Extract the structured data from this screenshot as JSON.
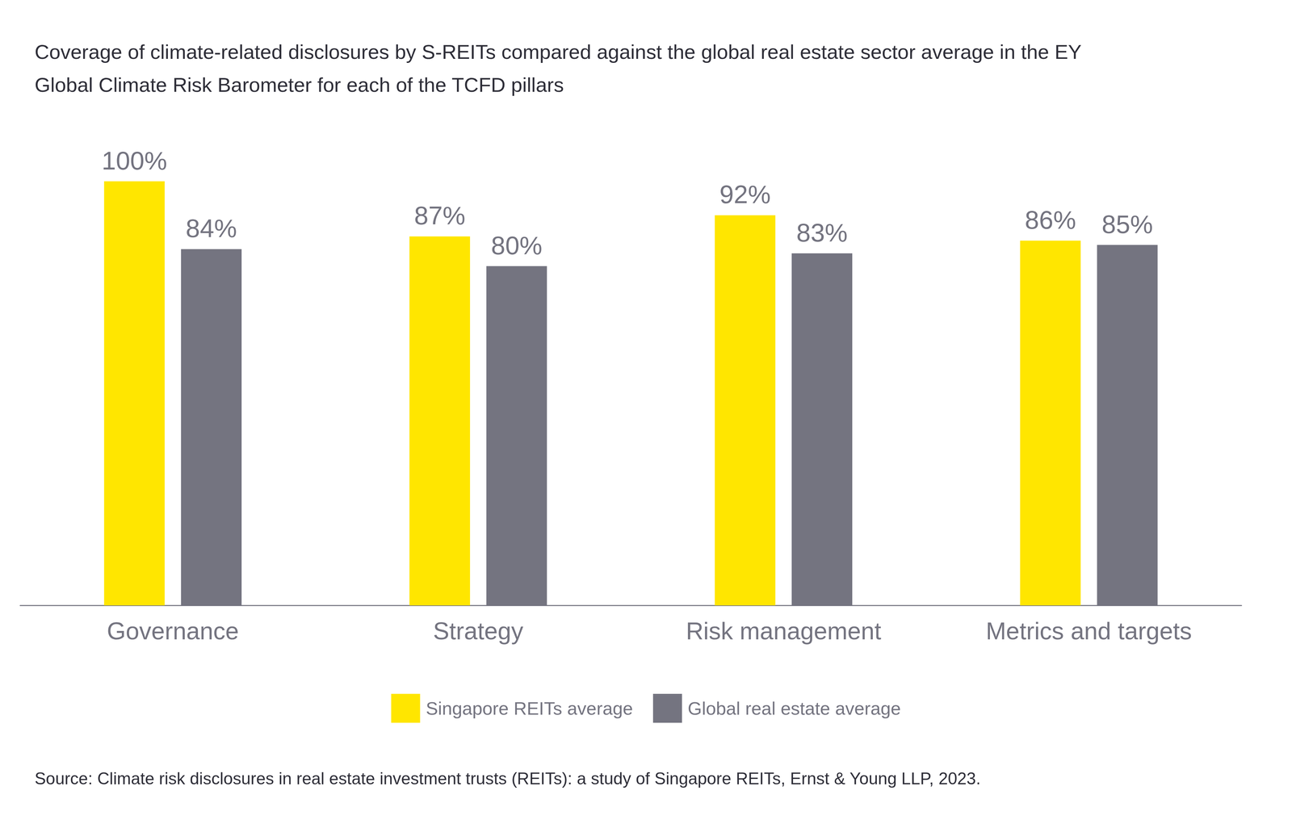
{
  "chart_data": {
    "type": "bar",
    "title": "Coverage of climate-related disclosures by S-REITs compared against the global real estate sector average in the EY Global Climate Risk Barometer for each of the TCFD pillars",
    "source": "Source: Climate risk disclosures in real estate investment trusts (REITs): a study of Singapore REITs, Ernst & Young LLP, 2023.",
    "categories": [
      "Governance",
      "Strategy",
      "Risk management",
      "Metrics and targets"
    ],
    "series": [
      {
        "name": "Singapore REITs average",
        "color": "#ffe600",
        "values": [
          100,
          87,
          92,
          86
        ],
        "value_labels": [
          "100%",
          "87%",
          "92%",
          "86%"
        ]
      },
      {
        "name": "Global real estate average",
        "color": "#747480",
        "values": [
          84,
          80,
          83,
          85
        ],
        "value_labels": [
          "84%",
          "80%",
          "83%",
          "85%"
        ]
      }
    ],
    "ylim": [
      0,
      100
    ],
    "yticks": [
      0,
      100
    ],
    "grid": false,
    "legend": "bottom",
    "data_labels": true,
    "tick_labels": "x"
  }
}
